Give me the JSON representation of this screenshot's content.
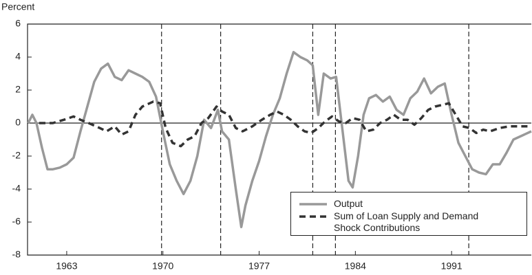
{
  "chart_data": {
    "type": "line",
    "ylabel": "Percent",
    "xlim": [
      1960.15,
      1996.8
    ],
    "xticks": [
      1963,
      1970,
      1977,
      1984,
      1991
    ],
    "ylim": [
      -8,
      6
    ],
    "yticks": [
      -8,
      -6,
      -4,
      -2,
      0,
      2,
      4,
      6
    ],
    "hlines": [
      0
    ],
    "vlines": [
      1969.9,
      1974.2,
      1980.9,
      1982.55,
      1992.25
    ],
    "series": [
      {
        "name": "Output",
        "color": "#999999",
        "x": [
          1960.2,
          1960.5,
          1960.8,
          1961.2,
          1961.6,
          1962,
          1962.5,
          1963,
          1963.5,
          1964,
          1964.5,
          1965,
          1965.5,
          1966,
          1966.5,
          1967,
          1967.5,
          1968,
          1968.5,
          1969,
          1969.5,
          1970,
          1970.5,
          1971,
          1971.5,
          1972,
          1972.5,
          1973,
          1973.5,
          1974,
          1974.3,
          1974.8,
          1975.3,
          1975.7,
          1976,
          1976.5,
          1977,
          1977.5,
          1978,
          1978.5,
          1979,
          1979.5,
          1980,
          1980.5,
          1980.9,
          1981.3,
          1981.7,
          1982.2,
          1982.6,
          1983,
          1983.5,
          1983.8,
          1984.2,
          1984.6,
          1985,
          1985.5,
          1986,
          1986.5,
          1987,
          1987.5,
          1988,
          1988.5,
          1989,
          1989.5,
          1990,
          1990.5,
          1991,
          1991.5,
          1992,
          1992.5,
          1993,
          1993.5,
          1994,
          1994.5,
          1995,
          1995.5,
          1996.8
        ],
        "values": [
          0,
          0.5,
          0,
          -1.5,
          -2.8,
          -2.8,
          -2.7,
          -2.5,
          -2.1,
          -0.5,
          1,
          2.5,
          3.3,
          3.6,
          2.8,
          2.6,
          3.2,
          3.0,
          2.8,
          2.5,
          1.6,
          -0.5,
          -2.5,
          -3.5,
          -4.3,
          -3.5,
          -2,
          0.2,
          -0.3,
          0.8,
          -0.5,
          -1,
          -4,
          -6.3,
          -5,
          -3.5,
          -2.3,
          -0.8,
          0.5,
          1.5,
          3,
          4.3,
          4,
          3.8,
          3.5,
          0.5,
          3,
          2.7,
          2.8,
          0,
          -3.5,
          -3.9,
          -2,
          0.5,
          1.5,
          1.7,
          1.3,
          1.6,
          0.8,
          0.5,
          1.5,
          1.9,
          2.7,
          1.8,
          2.2,
          2.4,
          0.5,
          -1.2,
          -2,
          -2.8,
          -3,
          -3.1,
          -2.5,
          -2.5,
          -1.8,
          -1.0,
          -0.5
        ]
      },
      {
        "name": "Sum of Loan Supply and Demand\nShock Contributions",
        "color": "#333333",
        "x": [
          1961,
          1962,
          1962.8,
          1963.5,
          1964,
          1964.6,
          1965.4,
          1965.9,
          1966.5,
          1967,
          1967.5,
          1968,
          1968.5,
          1969.3,
          1969.8,
          1970.2,
          1970.7,
          1971.3,
          1971.8,
          1972.3,
          1972.8,
          1973.3,
          1973.9,
          1974.3,
          1974.8,
          1975.3,
          1975.8,
          1976.5,
          1977.2,
          1977.8,
          1978.3,
          1978.8,
          1979.3,
          1979.8,
          1980.3,
          1980.8,
          1981.3,
          1981.8,
          1982.3,
          1982.8,
          1983.3,
          1983.8,
          1984.3,
          1984.8,
          1985.3,
          1985.8,
          1986.3,
          1986.8,
          1987.3,
          1987.8,
          1988.3,
          1988.8,
          1989.3,
          1989.8,
          1990.3,
          1990.8,
          1991.3,
          1991.8,
          1992.3,
          1992.8,
          1993.3,
          1993.8,
          1994.5,
          1995.2,
          1996.8
        ],
        "values": [
          0,
          0,
          0.2,
          0.4,
          0.2,
          0,
          -0.3,
          -0.5,
          -0.2,
          -0.7,
          -0.5,
          0.5,
          1.0,
          1.3,
          1.2,
          -0.3,
          -1.2,
          -1.4,
          -1.0,
          -0.8,
          0,
          0.3,
          1.0,
          0.7,
          0.5,
          -0.3,
          -0.5,
          -0.2,
          0.2,
          0.5,
          0.7,
          0.5,
          0.2,
          -0.2,
          -0.5,
          -0.6,
          -0.3,
          0.1,
          0.4,
          0.1,
          0.0,
          0.3,
          0.2,
          -0.5,
          -0.4,
          0,
          0.2,
          0.5,
          0.2,
          0.2,
          -0.1,
          0.3,
          0.8,
          1.0,
          1.1,
          1.2,
          0.5,
          -0.2,
          -0.3,
          -0.6,
          -0.4,
          -0.5,
          -0.3,
          -0.2,
          -0.2
        ]
      }
    ]
  }
}
